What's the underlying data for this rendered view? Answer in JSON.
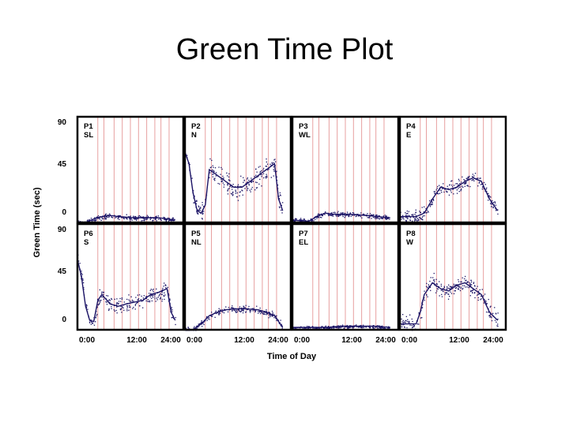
{
  "slide": {
    "title": "Green Time Plot"
  },
  "colors": {
    "panel_border": "#000000",
    "ref_line": "#e8a0a0",
    "data": "#1c1466"
  },
  "chart_data": {
    "type": "scatter",
    "layout": "small-multiples 2x4",
    "ylabel": "Green Time (sec)",
    "xlabel": "Time of Day",
    "ylim": [
      0,
      90
    ],
    "y_ticks": [
      {
        "row": 0,
        "labels": [
          "90",
          "45",
          "0"
        ]
      },
      {
        "row": 1,
        "labels": [
          "90",
          "45",
          "0"
        ]
      }
    ],
    "x_tick_labels": [
      "0:00",
      "12:00",
      "24:00",
      "0:00",
      "12:00",
      "24:00",
      "0:00",
      "12:00",
      "24:00",
      "0:00",
      "12:00",
      "24:00"
    ],
    "xlim_hours": [
      0,
      26
    ],
    "reference_lines_hours": [
      5,
      6.5,
      9,
      11,
      13,
      15,
      17,
      19,
      20.5,
      22.5
    ],
    "grid": false,
    "panels": [
      {
        "label": "P1",
        "direction": "SL",
        "row": 0,
        "col": 0,
        "profile": [
          [
            0,
            0
          ],
          [
            2,
            0
          ],
          [
            4,
            3
          ],
          [
            6,
            5
          ],
          [
            8,
            6
          ],
          [
            10,
            5
          ],
          [
            14,
            4
          ],
          [
            18,
            4
          ],
          [
            20,
            4
          ],
          [
            22,
            3
          ],
          [
            24,
            2
          ]
        ],
        "spread": 1.5
      },
      {
        "label": "P2",
        "direction": "N",
        "row": 0,
        "col": 1,
        "profile": [
          [
            0,
            60
          ],
          [
            1,
            50
          ],
          [
            2,
            25
          ],
          [
            3,
            10
          ],
          [
            4,
            8
          ],
          [
            5,
            15
          ],
          [
            6,
            45
          ],
          [
            8,
            40
          ],
          [
            10,
            35
          ],
          [
            12,
            30
          ],
          [
            14,
            30
          ],
          [
            16,
            35
          ],
          [
            18,
            40
          ],
          [
            20,
            45
          ],
          [
            22,
            50
          ],
          [
            23,
            20
          ],
          [
            24,
            10
          ]
        ],
        "spread": 6
      },
      {
        "label": "P3",
        "direction": "WL",
        "row": 0,
        "col": 2,
        "profile": [
          [
            0,
            2
          ],
          [
            4,
            1
          ],
          [
            6,
            5
          ],
          [
            8,
            8
          ],
          [
            10,
            7
          ],
          [
            14,
            7
          ],
          [
            18,
            6
          ],
          [
            21,
            5
          ],
          [
            24,
            4
          ]
        ],
        "spread": 1.5
      },
      {
        "label": "P4",
        "direction": "E",
        "row": 0,
        "col": 3,
        "profile": [
          [
            0,
            5
          ],
          [
            4,
            5
          ],
          [
            6,
            8
          ],
          [
            8,
            20
          ],
          [
            10,
            30
          ],
          [
            12,
            28
          ],
          [
            14,
            30
          ],
          [
            16,
            35
          ],
          [
            18,
            38
          ],
          [
            20,
            35
          ],
          [
            22,
            20
          ],
          [
            24,
            10
          ]
        ],
        "spread": 4
      },
      {
        "label": "P6",
        "direction": "S",
        "row": 1,
        "col": 0,
        "profile": [
          [
            0,
            60
          ],
          [
            1,
            45
          ],
          [
            2,
            20
          ],
          [
            3,
            8
          ],
          [
            4,
            7
          ],
          [
            5,
            25
          ],
          [
            6,
            30
          ],
          [
            8,
            22
          ],
          [
            10,
            20
          ],
          [
            12,
            22
          ],
          [
            16,
            25
          ],
          [
            18,
            30
          ],
          [
            20,
            32
          ],
          [
            22,
            35
          ],
          [
            23,
            15
          ],
          [
            24,
            8
          ]
        ],
        "spread": 5
      },
      {
        "label": "P5",
        "direction": "NL",
        "row": 1,
        "col": 1,
        "profile": [
          [
            0,
            0
          ],
          [
            2,
            0
          ],
          [
            4,
            5
          ],
          [
            6,
            12
          ],
          [
            8,
            15
          ],
          [
            10,
            17
          ],
          [
            14,
            18
          ],
          [
            18,
            17
          ],
          [
            20,
            15
          ],
          [
            22,
            12
          ],
          [
            24,
            2
          ]
        ],
        "spread": 2
      },
      {
        "label": "P7",
        "direction": "EL",
        "row": 1,
        "col": 2,
        "profile": [
          [
            0,
            2
          ],
          [
            4,
            2
          ],
          [
            8,
            2
          ],
          [
            12,
            3
          ],
          [
            16,
            3
          ],
          [
            20,
            3
          ],
          [
            24,
            2
          ]
        ],
        "spread": 1
      },
      {
        "label": "P8",
        "direction": "W",
        "row": 1,
        "col": 3,
        "profile": [
          [
            0,
            5
          ],
          [
            4,
            5
          ],
          [
            5,
            15
          ],
          [
            6,
            30
          ],
          [
            8,
            40
          ],
          [
            10,
            35
          ],
          [
            12,
            33
          ],
          [
            14,
            38
          ],
          [
            16,
            40
          ],
          [
            18,
            35
          ],
          [
            20,
            30
          ],
          [
            22,
            15
          ],
          [
            24,
            8
          ]
        ],
        "spread": 5
      }
    ]
  }
}
